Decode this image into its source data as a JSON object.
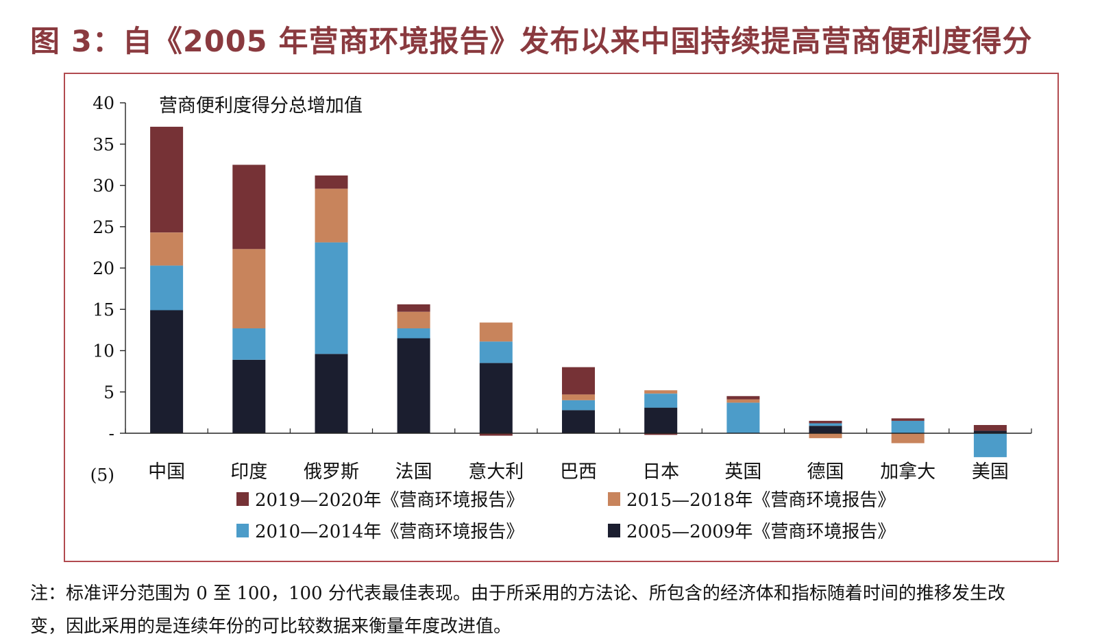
{
  "title": "图 3：自《2005 年营商环境报告》发布以来中国持续提高营商便利度得分",
  "note": {
    "line1": "注：标准评分范围为 0 至 100，100 分代表最佳表现。由于所采用的方法论、所包含的经济体和指标随着时间的推移发生改",
    "line2": "变，因此采用的是连续年份的可比较数据来衡量年度改进值。"
  },
  "colors": {
    "s2005": "#1b1e2f",
    "s2010": "#4c9cc9",
    "s2015": "#c8845c",
    "s2019": "#763236",
    "frame": "#b14a4f",
    "title": "#8a3a3f"
  },
  "chart_data": {
    "type": "bar",
    "stacked": true,
    "title": "营商便利度得分总增加值",
    "xlabel": "",
    "ylabel": "",
    "ylim": [
      -5,
      40
    ],
    "yticks": [
      {
        "value": 40,
        "label": "40"
      },
      {
        "value": 35,
        "label": "35"
      },
      {
        "value": 30,
        "label": "30"
      },
      {
        "value": 25,
        "label": "25"
      },
      {
        "value": 20,
        "label": "20"
      },
      {
        "value": 15,
        "label": "15"
      },
      {
        "value": 10,
        "label": "10"
      },
      {
        "value": 5,
        "label": "5"
      },
      {
        "value": 0,
        "label": "-"
      },
      {
        "value": -5,
        "label": "(5)"
      }
    ],
    "categories": [
      "中国",
      "印度",
      "俄罗斯",
      "法国",
      "意大利",
      "巴西",
      "日本",
      "英国",
      "德国",
      "加拿大",
      "美国"
    ],
    "series": [
      {
        "name": "2005—2009年《营商环境报告》",
        "color_key": "s2005",
        "values": [
          14.9,
          8.9,
          9.6,
          11.5,
          8.5,
          2.8,
          3.1,
          0.0,
          0.9,
          0.0,
          0.3
        ]
      },
      {
        "name": "2010—2014年《营商环境报告》",
        "color_key": "s2010",
        "values": [
          5.4,
          3.8,
          13.5,
          1.2,
          2.6,
          1.2,
          1.7,
          3.7,
          0.3,
          1.5,
          -2.9
        ]
      },
      {
        "name": "2015—2018年《营商环境报告》",
        "color_key": "s2015",
        "values": [
          4.0,
          9.6,
          6.5,
          2.0,
          2.3,
          0.7,
          0.4,
          0.4,
          -0.6,
          -1.2,
          0.0
        ]
      },
      {
        "name": "2019—2020年《营商环境报告》",
        "color_key": "s2019",
        "values": [
          12.8,
          10.2,
          1.6,
          0.9,
          -0.3,
          3.3,
          -0.2,
          0.4,
          0.3,
          0.3,
          0.7
        ]
      }
    ],
    "legend": {
      "placement": "bottom",
      "order": [
        3,
        2,
        1,
        0
      ]
    }
  }
}
